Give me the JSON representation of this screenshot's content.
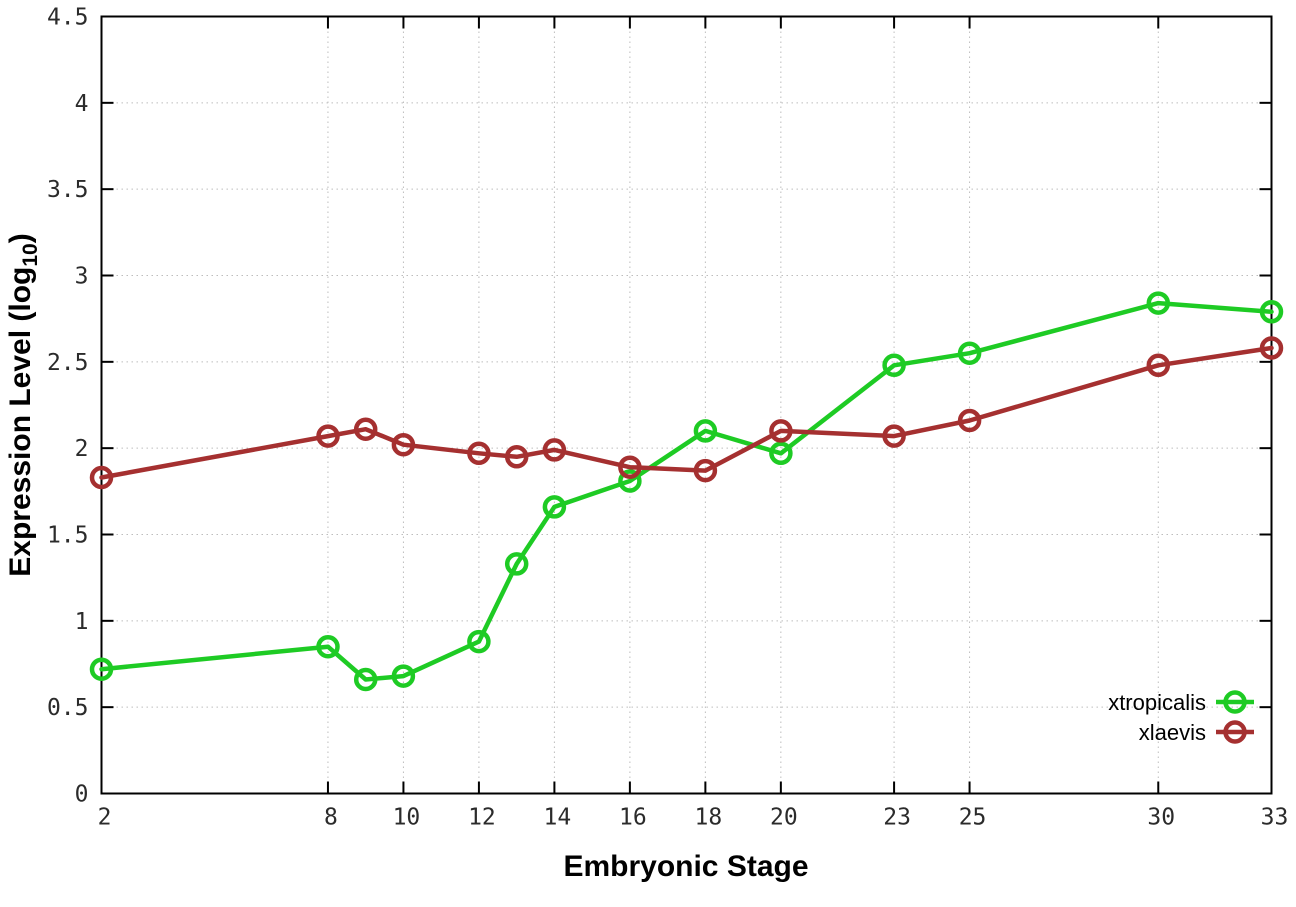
{
  "chart_data": {
    "type": "line",
    "title": "",
    "xlabel": "Embryonic Stage",
    "ylabel": {
      "prefix": "Expression Level (log",
      "subscript": "10",
      "suffix": ")"
    },
    "x": [
      2,
      8,
      9,
      10,
      12,
      13,
      14,
      16,
      18,
      20,
      23,
      25,
      30,
      33
    ],
    "series": [
      {
        "name": "xtropicalis",
        "color": "#1ecb24",
        "marker": "open-circle",
        "values": [
          0.72,
          0.85,
          0.66,
          0.68,
          0.88,
          1.33,
          1.66,
          1.81,
          2.1,
          1.97,
          2.48,
          2.55,
          2.84,
          2.79
        ]
      },
      {
        "name": "xlaevis",
        "color": "#a53030",
        "marker": "open-circle",
        "values": [
          1.83,
          2.07,
          2.11,
          2.02,
          1.97,
          1.95,
          1.99,
          1.89,
          1.87,
          2.1,
          2.07,
          2.16,
          2.48,
          2.58
        ]
      }
    ],
    "xlim": [
      2,
      33
    ],
    "ylim": [
      0,
      4.5
    ],
    "x_ticks": {
      "values": [
        2,
        8,
        10,
        12,
        14,
        16,
        18,
        20,
        23,
        25,
        30,
        33
      ],
      "labels": [
        "2",
        "8",
        "10",
        "12",
        "14",
        "16",
        "18",
        "20",
        "23",
        "25",
        "30",
        "33"
      ]
    },
    "y_ticks": {
      "values": [
        0,
        0.5,
        1,
        1.5,
        2,
        2.5,
        3,
        3.5,
        4,
        4.5
      ],
      "labels": [
        "0",
        "0.5",
        "1",
        "1.5",
        "2",
        "2.5",
        "3",
        "3.5",
        "4",
        "4.5"
      ]
    },
    "grid": true,
    "grid_style": "dotted",
    "legend_position": "inside-bottom-right",
    "legend_entries": [
      "xtropicalis",
      "xlaevis"
    ]
  },
  "colors": {
    "background": "#ffffff",
    "plot_border": "#000000",
    "grid": "#bdbdbd",
    "tick": "#000000",
    "tick_label": "#2b2b2b",
    "axis_title": "#000000",
    "legend_text": "#000000",
    "series_green": "#1ecb24",
    "series_red": "#a53030"
  }
}
